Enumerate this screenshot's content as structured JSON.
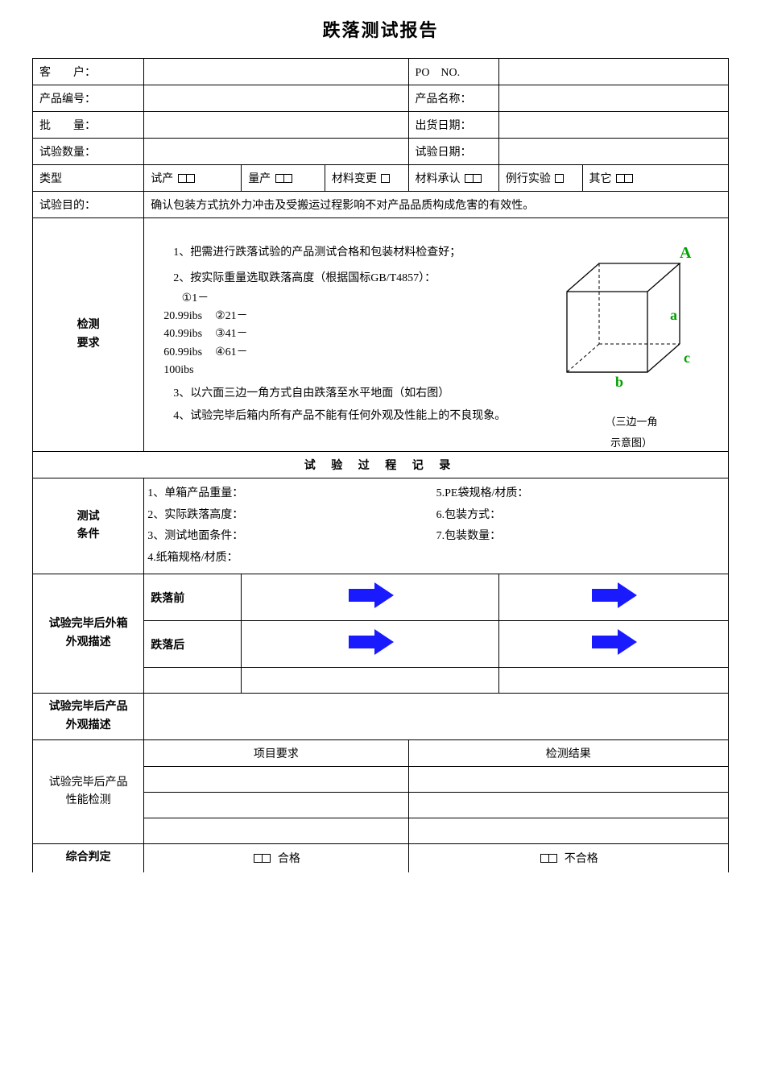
{
  "title": "跌落测试报告",
  "header": {
    "customer_label": "客　　户：",
    "po_label": "PO　NO.",
    "product_no_label": "产品编号：",
    "product_name_label": "产品名称：",
    "batch_label": "批　　量：",
    "ship_date_label": "出货日期：",
    "test_qty_label": "试验数量：",
    "test_date_label": "试验日期：",
    "type_label": "类型",
    "type_options": {
      "trial": "试产",
      "mass": "量产",
      "material_change": "材料变更",
      "material_approve": "材料承认",
      "routine": "例行实验",
      "other": "其它"
    }
  },
  "purpose": {
    "label": "试验目的：",
    "text": "确认包装方式抗外力冲击及受搬运过程影响不对产品品质构成危害的有效性。"
  },
  "requirements": {
    "label": "检测\n要求",
    "line1": "1、把需进行跌落试验的产品测试合格和包装材料检查好；",
    "line2": "2、按实际重量选取跌落高度（根据国标GB/T4857）：",
    "weight1a": "①1－",
    "weight1b": "20.99ibs",
    "weight2a": "②21－",
    "weight2b": "40.99ibs",
    "weight3a": "③41－",
    "weight3b": "60.99ibs",
    "weight4a": "④61－",
    "weight4b": "100ibs",
    "line3": "3、以六面三边一角方式自由跌落至水平地面（如右图）",
    "line4": "4、试验完毕后箱内所有产品不能有任何外观及性能上的不良现象。",
    "diagram_caption": "（三边一角\n示意图）",
    "cube_labels": {
      "A": "A",
      "a": "a",
      "b": "b",
      "c": "c"
    },
    "cube_colors": {
      "label": "#00a000",
      "line": "#000000"
    }
  },
  "process_section_title": "试 验 过 程 记 录",
  "conditions": {
    "label": "测试\n条件",
    "left": [
      "1、单箱产品重量：",
      "2、实际跌落高度：",
      "3、测试地面条件：",
      "4.纸箱规格/材质："
    ],
    "right": [
      "5.PE袋规格/材质：",
      "6.包装方式：",
      "7.包装数量："
    ]
  },
  "box_appearance": {
    "label": "试验完毕后外箱\n外观描述",
    "before": "跌落前",
    "after": "跌落后"
  },
  "product_appearance_label": "试验完毕后产品\n外观描述",
  "performance": {
    "label": "试验完毕后产品\n性能检测",
    "req_header": "项目要求",
    "result_header": "检测结果"
  },
  "judgement": {
    "label": "综合判定",
    "pass": "合格",
    "fail": "不合格"
  },
  "arrow_color": "#1a1aff"
}
